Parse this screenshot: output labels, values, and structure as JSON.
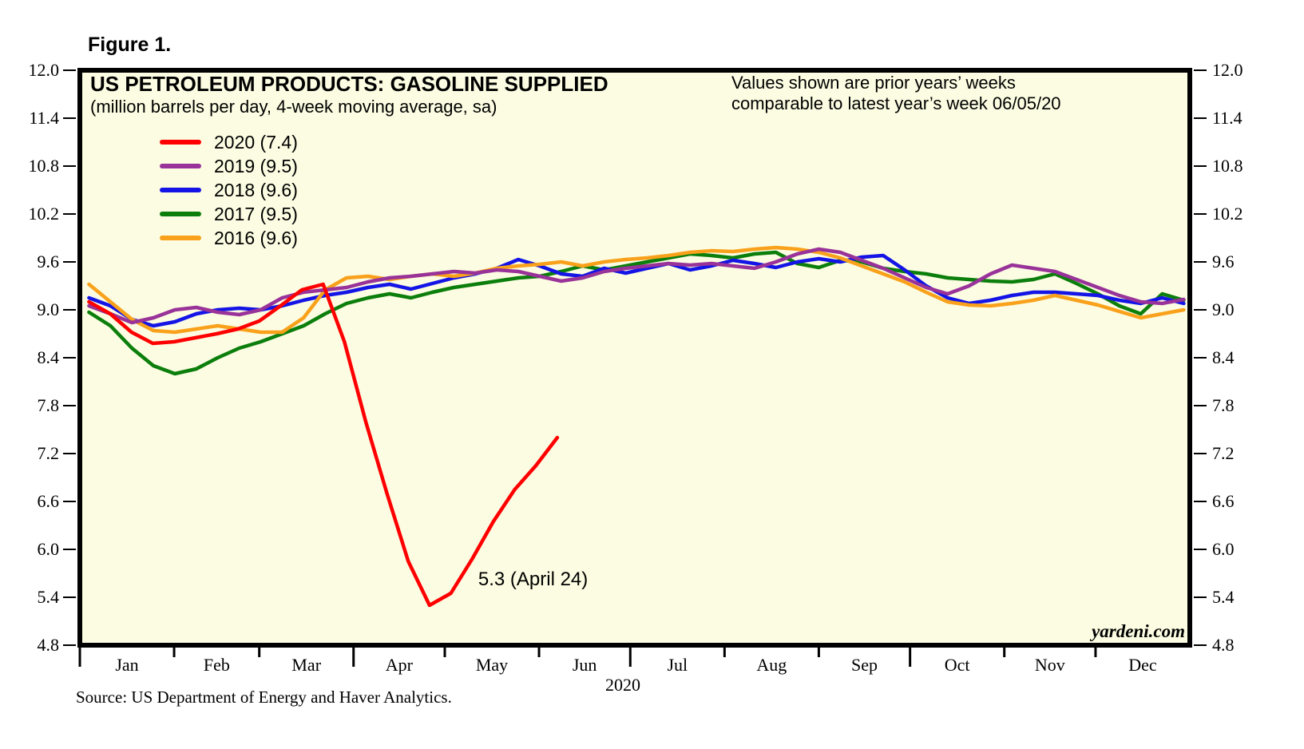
{
  "figure_label": "Figure 1.",
  "source_line": "Source: US Department of Energy and Haver Analytics.",
  "chart_data": {
    "type": "line",
    "title": "US PETROLEUM PRODUCTS: GASOLINE SUPPLIED",
    "subtitle": "(million barrels per day, 4-week moving average, sa)",
    "note_lines": [
      "Values shown are prior years’ weeks",
      "comparable to latest year’s week 06/05/20"
    ],
    "watermark": "yardeni.com",
    "annotation": {
      "text": "5.3 (April 24)",
      "day": 131,
      "value_top": 5.76
    },
    "background_color": "#FCFCE2",
    "frame_color": "#000000",
    "y_axis": {
      "min": 4.8,
      "max": 12.0,
      "step": 0.6,
      "sides": "both"
    },
    "x_axis": {
      "year_label": "2020",
      "months": [
        "Jan",
        "Feb",
        "Mar",
        "Apr",
        "May",
        "Jun",
        "Jul",
        "Aug",
        "Sep",
        "Oct",
        "Nov",
        "Dec"
      ],
      "month_boundary_days": [
        0,
        31,
        59,
        90,
        120,
        151,
        181,
        212,
        243,
        273,
        304,
        334,
        365
      ],
      "quarter_tick_days": [
        0,
        90,
        181,
        273
      ],
      "grid": "off"
    },
    "legend_position": "top-left-inside",
    "series": [
      {
        "name": "2020 (7.4)",
        "color": "#FF0000",
        "z": 5,
        "start_day": 3,
        "end_day": 157,
        "values": [
          9.1,
          8.95,
          8.72,
          8.58,
          8.6,
          8.65,
          8.7,
          8.76,
          8.86,
          9.05,
          9.25,
          9.32,
          8.6,
          7.6,
          6.7,
          5.85,
          5.3,
          5.45,
          5.88,
          6.35,
          6.75,
          7.05,
          7.4
        ]
      },
      {
        "name": "2019 (9.5)",
        "color": "#993399",
        "z": 4,
        "start_day": 3,
        "end_day": 363,
        "values": [
          9.05,
          8.95,
          8.84,
          8.9,
          9.0,
          9.03,
          8.97,
          8.94,
          9.0,
          9.15,
          9.22,
          9.25,
          9.28,
          9.35,
          9.4,
          9.42,
          9.45,
          9.48,
          9.46,
          9.5,
          9.48,
          9.42,
          9.36,
          9.4,
          9.48,
          9.52,
          9.55,
          9.58,
          9.56,
          9.58,
          9.55,
          9.52,
          9.6,
          9.7,
          9.76,
          9.72,
          9.62,
          9.52,
          9.4,
          9.28,
          9.2,
          9.3,
          9.45,
          9.56,
          9.52,
          9.48,
          9.38,
          9.28,
          9.18,
          9.1,
          9.08,
          9.13
        ]
      },
      {
        "name": "2018 (9.6)",
        "color": "#1414E6",
        "z": 2,
        "start_day": 3,
        "end_day": 363,
        "values": [
          9.15,
          9.05,
          8.88,
          8.8,
          8.85,
          8.95,
          9.0,
          9.02,
          9.0,
          9.05,
          9.12,
          9.18,
          9.22,
          9.28,
          9.32,
          9.26,
          9.33,
          9.4,
          9.45,
          9.52,
          9.63,
          9.55,
          9.45,
          9.42,
          9.52,
          9.46,
          9.52,
          9.58,
          9.5,
          9.55,
          9.62,
          9.58,
          9.53,
          9.6,
          9.64,
          9.6,
          9.66,
          9.68,
          9.5,
          9.3,
          9.15,
          9.08,
          9.12,
          9.18,
          9.22,
          9.22,
          9.2,
          9.18,
          9.12,
          9.08,
          9.15,
          9.08
        ]
      },
      {
        "name": "2017 (9.5)",
        "color": "#0B7E0B",
        "z": 1,
        "start_day": 3,
        "end_day": 363,
        "values": [
          8.97,
          8.8,
          8.52,
          8.3,
          8.2,
          8.26,
          8.4,
          8.52,
          8.6,
          8.7,
          8.8,
          8.95,
          9.08,
          9.15,
          9.2,
          9.15,
          9.22,
          9.28,
          9.32,
          9.36,
          9.4,
          9.42,
          9.48,
          9.55,
          9.5,
          9.55,
          9.6,
          9.65,
          9.7,
          9.68,
          9.65,
          9.7,
          9.72,
          9.58,
          9.53,
          9.62,
          9.6,
          9.52,
          9.48,
          9.45,
          9.4,
          9.38,
          9.36,
          9.35,
          9.38,
          9.45,
          9.33,
          9.2,
          9.05,
          8.95,
          9.2,
          9.12
        ]
      },
      {
        "name": "2016 (9.6)",
        "color": "#F9A11B",
        "z": 3,
        "start_day": 3,
        "end_day": 363,
        "values": [
          9.32,
          9.1,
          8.88,
          8.74,
          8.72,
          8.76,
          8.8,
          8.76,
          8.72,
          8.72,
          8.9,
          9.25,
          9.4,
          9.42,
          9.38,
          9.42,
          9.45,
          9.42,
          9.46,
          9.52,
          9.55,
          9.57,
          9.6,
          9.55,
          9.6,
          9.63,
          9.65,
          9.68,
          9.72,
          9.74,
          9.73,
          9.76,
          9.78,
          9.76,
          9.72,
          9.65,
          9.55,
          9.45,
          9.35,
          9.22,
          9.1,
          9.06,
          9.05,
          9.08,
          9.12,
          9.18,
          9.12,
          9.06,
          8.98,
          8.9,
          8.95,
          9.0
        ]
      }
    ]
  }
}
